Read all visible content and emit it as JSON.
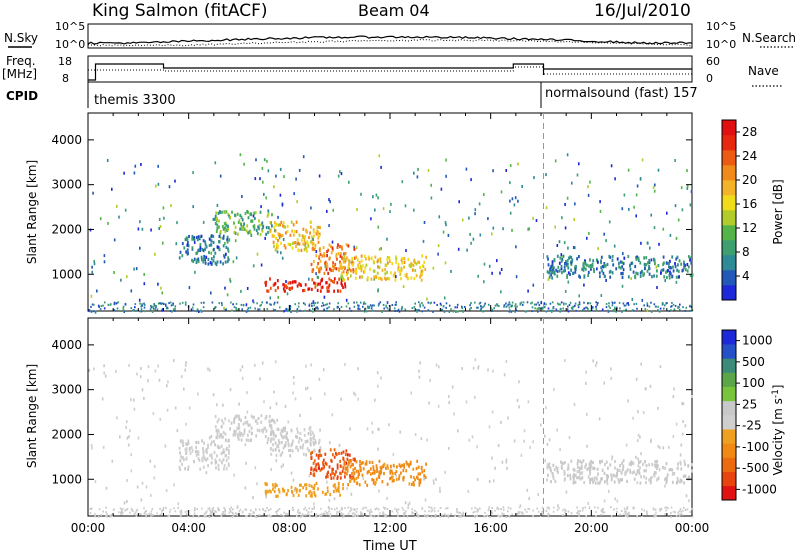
{
  "header": {
    "station": "King Salmon (fitACF)",
    "beam": "Beam 04",
    "date": "16/Jul/2010"
  },
  "labels": {
    "nsky": "N.Sky",
    "nsearch": "N.Search",
    "freq": "Freq.",
    "freq_unit": "[MHz]",
    "nave": "Nave",
    "cpid": "CPID",
    "cpid1": "themis 3300",
    "cpid2": "normalsound (fast) 157"
  },
  "ticks": {
    "nsky_left": [
      "10^5",
      "10^0"
    ],
    "nsky_right": [
      "10^5",
      "10^0"
    ],
    "freq_left": [
      "18",
      "8"
    ],
    "freq_right": [
      "60",
      "0"
    ]
  },
  "colors": {
    "power": [
      "#1d28d8",
      "#2258b8",
      "#2e8a96",
      "#3ea070",
      "#55b447",
      "#b2cc2a",
      "#f0dc1a",
      "#f4b42a",
      "#f08a1a",
      "#ec5a14",
      "#e8280e",
      "#e01010"
    ],
    "velocity": [
      "#1d28d8",
      "#2650c8",
      "#3c8a78",
      "#5ca64a",
      "#78c43c",
      "#c8c8c8",
      "#cfcfcf",
      "#f0a020",
      "#f08a14",
      "#ec6a10",
      "#e84410",
      "#e01212"
    ]
  },
  "chart_data": [
    {
      "type": "heatmap",
      "name": "power",
      "ylabel": "Slant Range [km]",
      "yticks": [
        "1000",
        "2000",
        "3000",
        "4000"
      ],
      "ylim": [
        180,
        4600
      ],
      "xlim": [
        0,
        24
      ],
      "colorbar": {
        "label": "Power [dB]",
        "ticks": [
          "4",
          "8",
          "12",
          "16",
          "20",
          "24",
          "28"
        ],
        "range": [
          0,
          30
        ]
      },
      "features": [
        {
          "t0": 3.6,
          "t1": 5.6,
          "r0": 1250,
          "r1": 1900,
          "level": 6
        },
        {
          "t0": 5.0,
          "t1": 7.4,
          "r0": 1900,
          "r1": 2450,
          "level": 10
        },
        {
          "t0": 7.2,
          "t1": 9.2,
          "r0": 1550,
          "r1": 2200,
          "level": 18
        },
        {
          "t0": 8.8,
          "t1": 10.6,
          "r0": 1050,
          "r1": 1700,
          "level": 22
        },
        {
          "t0": 7.0,
          "t1": 10.2,
          "r0": 650,
          "r1": 950,
          "level": 27
        },
        {
          "t0": 10.0,
          "t1": 13.4,
          "r0": 900,
          "r1": 1450,
          "level": 17
        },
        {
          "t0": 18.2,
          "t1": 24.0,
          "r0": 950,
          "r1": 1450,
          "level": 6
        }
      ]
    },
    {
      "type": "heatmap",
      "name": "velocity",
      "ylabel": "Slant Range [km]",
      "yticks": [
        "1000",
        "2000",
        "3000",
        "4000"
      ],
      "ylim": [
        180,
        4600
      ],
      "xlim": [
        0,
        24
      ],
      "colorbar": {
        "label": "Velocity [m s",
        "label_sup": "-1",
        "label_end": "]",
        "ticks": [
          "1000",
          "500",
          "100",
          "25",
          "-25",
          "-100",
          "-500",
          "-1000"
        ],
        "range": [
          -1000,
          1000
        ]
      },
      "features": [
        {
          "t0": 3.6,
          "t1": 5.6,
          "r0": 1250,
          "r1": 1900,
          "level": -10
        },
        {
          "t0": 5.0,
          "t1": 7.4,
          "r0": 1900,
          "r1": 2450,
          "level": 0
        },
        {
          "t0": 7.2,
          "t1": 9.2,
          "r0": 1550,
          "r1": 2200,
          "level": -5
        },
        {
          "t0": 8.8,
          "t1": 10.6,
          "r0": 1050,
          "r1": 1700,
          "level": -700
        },
        {
          "t0": 7.0,
          "t1": 10.2,
          "r0": 650,
          "r1": 950,
          "level": -250
        },
        {
          "t0": 10.0,
          "t1": 13.4,
          "r0": 900,
          "r1": 1450,
          "level": -400
        },
        {
          "t0": 18.2,
          "t1": 24.0,
          "r0": 950,
          "r1": 1450,
          "level": 5
        }
      ]
    }
  ],
  "xaxis": {
    "label": "Time UT",
    "ticks": [
      "00:00",
      "04:00",
      "08:00",
      "12:00",
      "16:00",
      "20:00",
      "00:00"
    ]
  },
  "mode_change_hour": 18.1
}
